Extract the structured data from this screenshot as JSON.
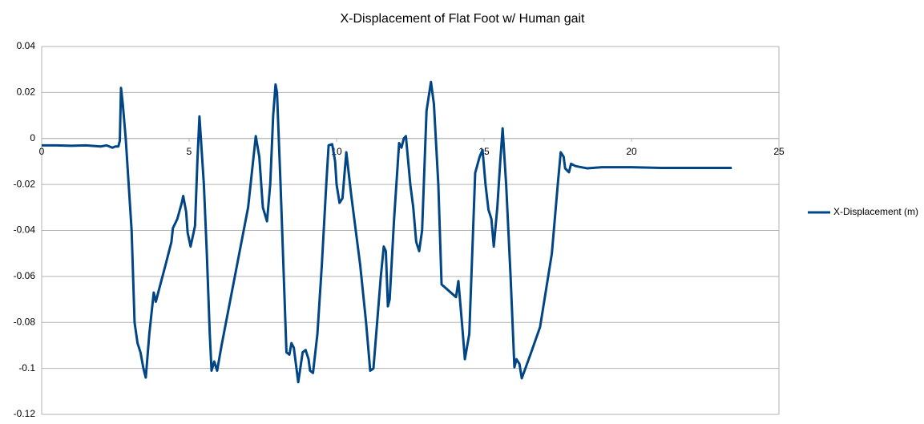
{
  "chart_data": {
    "type": "line",
    "title": "X-Displacement of Flat Foot w/ Human gait",
    "x": [
      0,
      0.5,
      1,
      1.5,
      2,
      2.2,
      2.4,
      2.5,
      2.6,
      2.65,
      2.69,
      2.75,
      2.85,
      2.95,
      3.05,
      3.15,
      3.25,
      3.35,
      3.45,
      3.53,
      3.65,
      3.8,
      3.87,
      4.2,
      4.4,
      4.45,
      4.6,
      4.75,
      4.8,
      4.9,
      4.95,
      5.05,
      5.2,
      5.28,
      5.35,
      5.5,
      5.6,
      5.7,
      5.76,
      5.85,
      5.95,
      6.1,
      7.0,
      7.26,
      7.38,
      7.5,
      7.64,
      7.75,
      7.85,
      7.93,
      7.98,
      8.1,
      8.3,
      8.4,
      8.47,
      8.55,
      8.7,
      8.85,
      8.95,
      9.05,
      9.1,
      9.2,
      9.35,
      9.5,
      9.65,
      9.73,
      9.85,
      9.95,
      10.0,
      10.1,
      10.2,
      10.33,
      10.5,
      10.8,
      11.0,
      11.14,
      11.25,
      11.5,
      11.6,
      11.67,
      11.74,
      11.8,
      11.95,
      12.12,
      12.2,
      12.28,
      12.35,
      12.5,
      12.6,
      12.7,
      12.8,
      12.9,
      13.05,
      13.2,
      13.3,
      13.45,
      13.56,
      14.05,
      14.13,
      14.25,
      14.35,
      14.5,
      14.7,
      14.85,
      14.95,
      15.05,
      15.15,
      15.25,
      15.33,
      15.45,
      15.55,
      15.63,
      15.75,
      15.9,
      16.03,
      16.1,
      16.2,
      16.28,
      16.6,
      16.9,
      17.3,
      17.5,
      17.6,
      17.7,
      17.75,
      17.88,
      17.95,
      18.1,
      18.5,
      19,
      20,
      21,
      22,
      23,
      23.4
    ],
    "series": [
      {
        "name": "X-Displacement (m)",
        "color": "#004586",
        "values": [
          -0.003,
          -0.003,
          -0.0032,
          -0.003,
          -0.0035,
          -0.003,
          -0.004,
          -0.0035,
          -0.0035,
          -0.001,
          0.022,
          0.015,
          0.0,
          -0.02,
          -0.04,
          -0.08,
          -0.089,
          -0.093,
          -0.1,
          -0.104,
          -0.085,
          -0.067,
          -0.071,
          -0.055,
          -0.045,
          -0.039,
          -0.035,
          -0.028,
          -0.025,
          -0.032,
          -0.041,
          -0.047,
          -0.038,
          -0.01,
          0.0096,
          -0.02,
          -0.05,
          -0.085,
          -0.101,
          -0.097,
          -0.101,
          -0.09,
          -0.03,
          0.001,
          -0.008,
          -0.03,
          -0.036,
          -0.02,
          0.01,
          0.0235,
          0.02,
          -0.02,
          -0.093,
          -0.094,
          -0.089,
          -0.091,
          -0.106,
          -0.093,
          -0.092,
          -0.096,
          -0.101,
          -0.102,
          -0.085,
          -0.055,
          -0.02,
          -0.003,
          -0.0025,
          -0.01,
          -0.02,
          -0.028,
          -0.026,
          -0.006,
          -0.025,
          -0.055,
          -0.08,
          -0.101,
          -0.1,
          -0.06,
          -0.047,
          -0.049,
          -0.073,
          -0.07,
          -0.035,
          -0.002,
          -0.004,
          0.0,
          0.001,
          -0.02,
          -0.03,
          -0.045,
          -0.049,
          -0.04,
          0.012,
          0.0246,
          0.015,
          -0.02,
          -0.0635,
          -0.069,
          -0.062,
          -0.08,
          -0.096,
          -0.085,
          -0.015,
          -0.008,
          -0.005,
          -0.02,
          -0.031,
          -0.035,
          -0.047,
          -0.03,
          -0.01,
          0.0044,
          -0.02,
          -0.06,
          -0.0995,
          -0.096,
          -0.098,
          -0.1043,
          -0.093,
          -0.082,
          -0.05,
          -0.02,
          -0.006,
          -0.008,
          -0.013,
          -0.0147,
          -0.011,
          -0.012,
          -0.013,
          -0.0125,
          -0.0125,
          -0.0128,
          -0.0128,
          -0.0128,
          -0.0128
        ]
      }
    ],
    "xlim": [
      0,
      25
    ],
    "xticks": [
      0,
      5,
      10,
      15,
      20,
      25
    ],
    "ylim": [
      -0.12,
      0.04
    ],
    "yticks": [
      -0.12,
      -0.1,
      -0.08,
      -0.06,
      -0.04,
      -0.02,
      0,
      0.02,
      0.04
    ],
    "grid": true,
    "legend": "right"
  }
}
